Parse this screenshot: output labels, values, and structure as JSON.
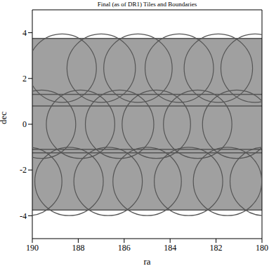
{
  "chart_data": {
    "type": "scatter",
    "title": "Final (as of DR1) Tiles and Boundaries",
    "x_label": "ra",
    "y_label": "dec",
    "xlim": [
      190,
      180
    ],
    "ylim": [
      -5,
      5
    ],
    "xticks": [
      190,
      188,
      186,
      184,
      182,
      180
    ],
    "yticks": [
      -4,
      -2,
      0,
      2,
      4
    ],
    "x": [
      188.7,
      187.0,
      185.4,
      183.6,
      181.9,
      180.3,
      189.6,
      187.9,
      186.2,
      184.6,
      182.8,
      181.1,
      190.2,
      188.4,
      186.7,
      185.0,
      183.2,
      181.5,
      179.9
    ],
    "y": [
      2.45,
      2.45,
      2.45,
      2.45,
      2.45,
      2.45,
      0,
      0,
      0,
      0,
      0,
      0,
      -2.5,
      -2.5,
      -2.5,
      -2.5,
      -2.5,
      -2.5,
      -2.5
    ],
    "radius": 1.49,
    "band": [
      -3.75,
      3.75
    ],
    "boundaries": [
      3.75,
      1.3,
      0.8,
      -1.1,
      -1.25,
      -3.75
    ],
    "color": "#555555",
    "marker": "circle"
  }
}
